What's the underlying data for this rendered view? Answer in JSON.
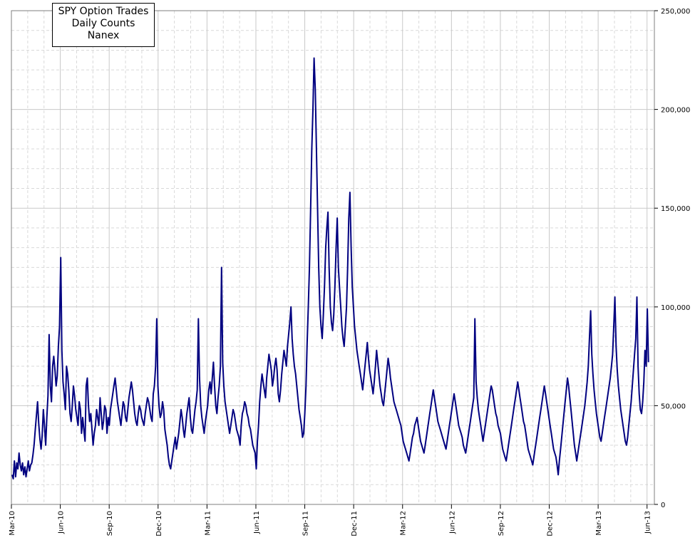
{
  "chart_data": {
    "type": "line",
    "title_lines": [
      "SPY Option Trades",
      "Daily Counts",
      "Nanex"
    ],
    "xlabel": "",
    "ylabel": "",
    "x_tick_labels": [
      "Mar-10",
      "Jun-10",
      "Sep-10",
      "Dec-10",
      "Mar-11",
      "Jun-11",
      "Sep-11",
      "Dec-11",
      "Mar-12",
      "Jun-12",
      "Sep-12",
      "Dec-12",
      "Mar-13",
      "Jun-13"
    ],
    "y_tick_labels": [
      "0",
      "50,000",
      "100,000",
      "150,000",
      "200,000",
      "250,000"
    ],
    "ylim": [
      0,
      250000
    ],
    "grid": true,
    "series_color": "#000080",
    "series": [
      {
        "x_start": "Mar-10",
        "x_end": "Jun-13",
        "values": [
          15000,
          13000,
          22000,
          14000,
          21000,
          18000,
          26000,
          20000,
          17000,
          21000,
          15000,
          19000,
          14000,
          18000,
          22000,
          17000,
          20000,
          21000,
          25000,
          30000,
          38000,
          45000,
          52000,
          41000,
          33000,
          28000,
          35000,
          48000,
          40000,
          30000,
          44000,
          55000,
          86000,
          60000,
          52000,
          70000,
          75000,
          68000,
          60000,
          65000,
          80000,
          90000,
          125000,
          78000,
          62000,
          56000,
          48000,
          70000,
          66000,
          58000,
          46000,
          42000,
          50000,
          60000,
          55000,
          48000,
          44000,
          40000,
          52000,
          48000,
          36000,
          44000,
          38000,
          32000,
          60000,
          64000,
          50000,
          42000,
          46000,
          38000,
          30000,
          36000,
          40000,
          48000,
          44000,
          40000,
          54000,
          46000,
          38000,
          42000,
          50000,
          48000,
          36000,
          44000,
          40000,
          48000,
          52000,
          56000,
          60000,
          64000,
          58000,
          52000,
          48000,
          44000,
          40000,
          46000,
          52000,
          50000,
          44000,
          42000,
          48000,
          54000,
          58000,
          62000,
          58000,
          52000,
          46000,
          42000,
          40000,
          46000,
          50000,
          48000,
          44000,
          42000,
          40000,
          46000,
          50000,
          54000,
          52000,
          48000,
          44000,
          42000,
          56000,
          60000,
          70000,
          94000,
          60000,
          50000,
          44000,
          46000,
          52000,
          48000,
          38000,
          34000,
          30000,
          24000,
          20000,
          18000,
          22000,
          26000,
          30000,
          34000,
          28000,
          32000,
          36000,
          42000,
          48000,
          44000,
          38000,
          34000,
          40000,
          46000,
          50000,
          54000,
          44000,
          38000,
          36000,
          42000,
          48000,
          52000,
          58000,
          94000,
          64000,
          50000,
          44000,
          40000,
          36000,
          42000,
          46000,
          50000,
          58000,
          62000,
          56000,
          64000,
          72000,
          60000,
          50000,
          46000,
          54000,
          60000,
          70000,
          120000,
          72000,
          60000,
          52000,
          48000,
          44000,
          40000,
          36000,
          40000,
          44000,
          48000,
          46000,
          42000,
          38000,
          36000,
          34000,
          30000,
          40000,
          46000,
          48000,
          52000,
          50000,
          46000,
          44000,
          40000,
          38000,
          34000,
          30000,
          28000,
          26000,
          18000,
          32000,
          40000,
          52000,
          60000,
          66000,
          62000,
          58000,
          54000,
          64000,
          70000,
          76000,
          72000,
          68000,
          60000,
          64000,
          70000,
          74000,
          68000,
          56000,
          52000,
          58000,
          66000,
          72000,
          78000,
          74000,
          70000,
          80000,
          86000,
          92000,
          100000,
          84000,
          76000,
          70000,
          66000,
          60000,
          54000,
          48000,
          44000,
          40000,
          34000,
          36000,
          46000,
          60000,
          82000,
          100000,
          120000,
          150000,
          180000,
          200000,
          226000,
          210000,
          180000,
          150000,
          120000,
          100000,
          90000,
          84000,
          96000,
          110000,
          130000,
          140000,
          148000,
          120000,
          100000,
          92000,
          88000,
          96000,
          110000,
          130000,
          145000,
          120000,
          110000,
          100000,
          90000,
          84000,
          80000,
          90000,
          100000,
          120000,
          145000,
          158000,
          130000,
          110000,
          100000,
          90000,
          84000,
          78000,
          74000,
          70000,
          66000,
          62000,
          58000,
          64000,
          70000,
          76000,
          82000,
          74000,
          68000,
          64000,
          60000,
          56000,
          62000,
          70000,
          78000,
          72000,
          66000,
          60000,
          56000,
          52000,
          50000,
          56000,
          62000,
          68000,
          74000,
          70000,
          64000,
          60000,
          56000,
          52000,
          50000,
          48000,
          46000,
          44000,
          42000,
          40000,
          36000,
          32000,
          30000,
          28000,
          26000,
          24000,
          22000,
          26000,
          30000,
          34000,
          36000,
          40000,
          42000,
          44000,
          40000,
          36000,
          32000,
          30000,
          28000,
          26000,
          30000,
          34000,
          38000,
          42000,
          46000,
          50000,
          54000,
          58000,
          54000,
          50000,
          46000,
          42000,
          40000,
          38000,
          36000,
          34000,
          32000,
          30000,
          28000,
          32000,
          36000,
          40000,
          44000,
          48000,
          52000,
          56000,
          52000,
          48000,
          44000,
          40000,
          38000,
          36000,
          34000,
          30000,
          28000,
          26000,
          30000,
          34000,
          38000,
          42000,
          46000,
          50000,
          54000,
          94000,
          62000,
          54000,
          48000,
          44000,
          40000,
          36000,
          32000,
          36000,
          40000,
          44000,
          48000,
          52000,
          56000,
          60000,
          58000,
          54000,
          50000,
          46000,
          44000,
          40000,
          38000,
          36000,
          32000,
          28000,
          26000,
          24000,
          22000,
          26000,
          30000,
          34000,
          38000,
          42000,
          46000,
          50000,
          54000,
          58000,
          62000,
          58000,
          54000,
          50000,
          46000,
          42000,
          40000,
          36000,
          32000,
          28000,
          26000,
          24000,
          22000,
          20000,
          24000,
          28000,
          32000,
          36000,
          40000,
          44000,
          48000,
          52000,
          56000,
          60000,
          56000,
          52000,
          48000,
          44000,
          40000,
          36000,
          32000,
          28000,
          26000,
          24000,
          20000,
          15000,
          22000,
          28000,
          34000,
          40000,
          46000,
          52000,
          58000,
          64000,
          60000,
          54000,
          48000,
          42000,
          36000,
          30000,
          26000,
          22000,
          26000,
          30000,
          34000,
          38000,
          42000,
          46000,
          50000,
          56000,
          62000,
          70000,
          84000,
          98000,
          76000,
          66000,
          58000,
          52000,
          46000,
          42000,
          38000,
          34000,
          32000,
          36000,
          40000,
          44000,
          48000,
          52000,
          56000,
          60000,
          64000,
          70000,
          76000,
          90000,
          105000,
          80000,
          68000,
          60000,
          54000,
          48000,
          44000,
          40000,
          36000,
          32000,
          30000,
          34000,
          40000,
          46000,
          52000,
          60000,
          68000,
          76000,
          84000,
          105000,
          70000,
          56000,
          48000,
          46000,
          52000,
          62000,
          78000,
          70000,
          99000,
          72000
        ]
      }
    ]
  }
}
